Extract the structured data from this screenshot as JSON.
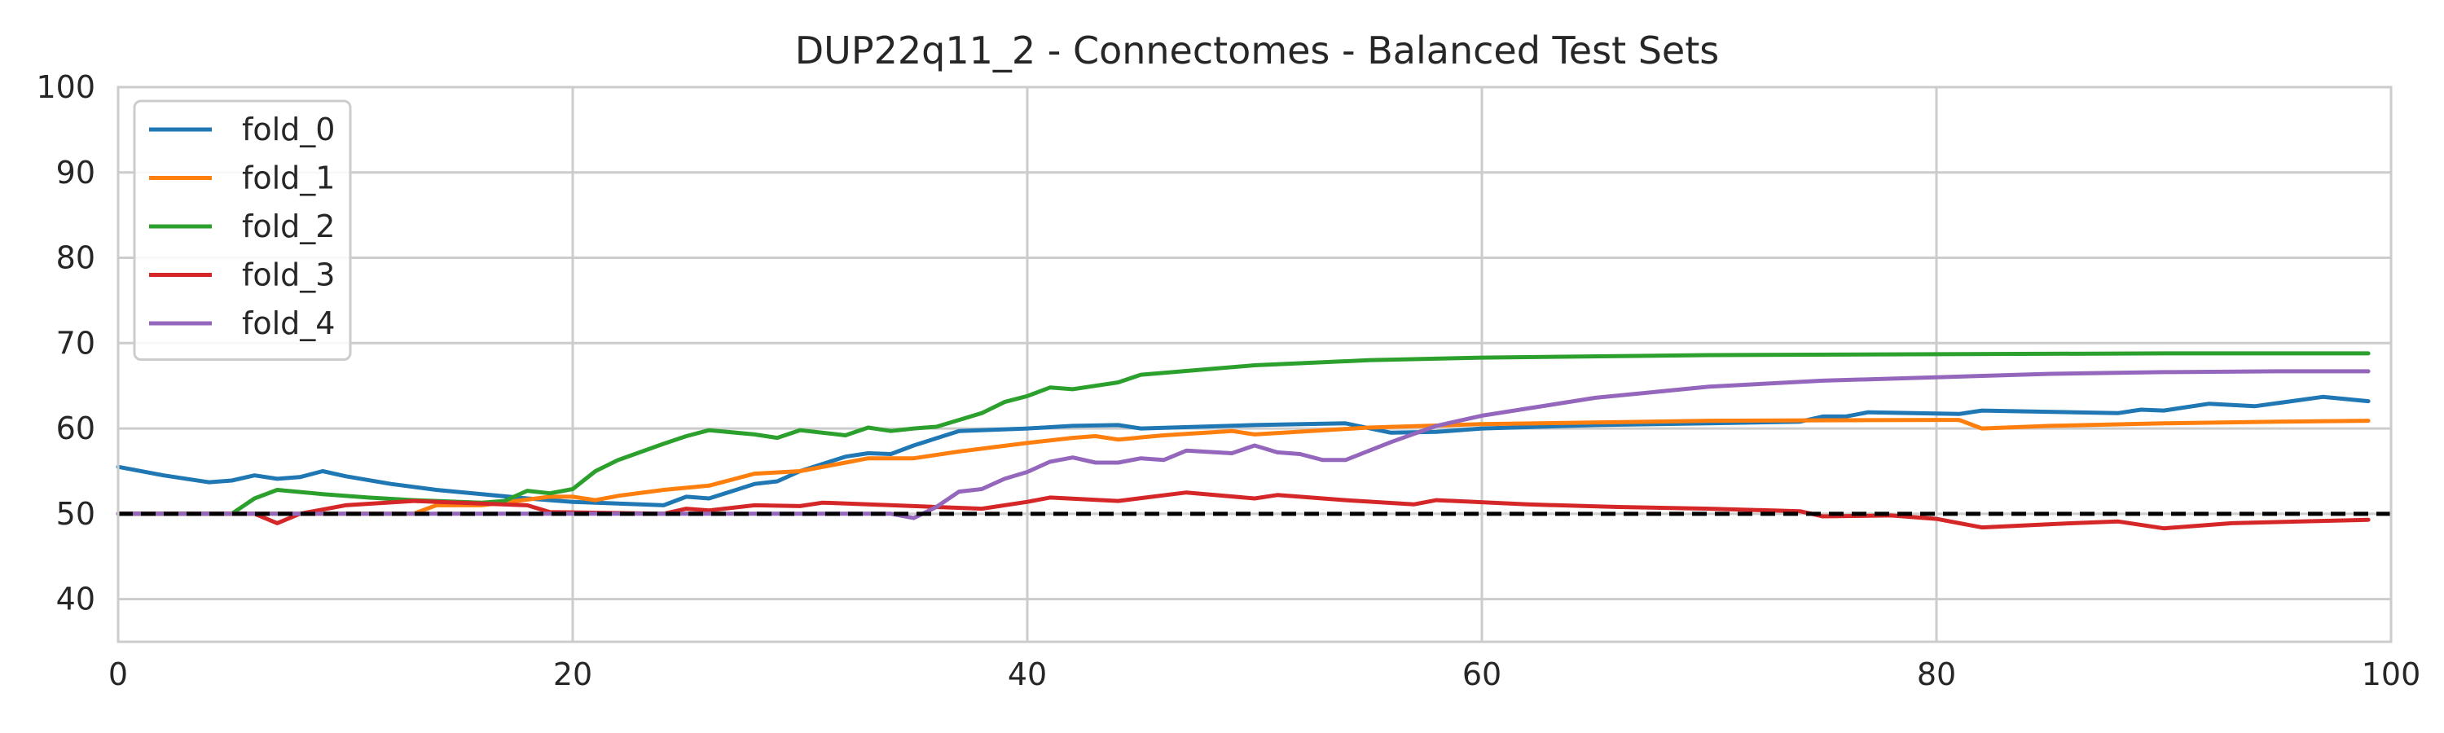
{
  "chart_data": {
    "type": "line",
    "title": "DUP22q11_2 - Connectomes - Balanced Test Sets",
    "xlabel": "",
    "ylabel": "",
    "xlim": [
      0,
      100
    ],
    "ylim": [
      35,
      100
    ],
    "xticks": [
      "0",
      "20",
      "40",
      "60",
      "80",
      "100"
    ],
    "yticks": [
      "40",
      "50",
      "60",
      "70",
      "80",
      "90",
      "100"
    ],
    "grid": true,
    "legend_position": "top-left",
    "reference_line": {
      "y": 50,
      "style": "dashed",
      "color": "#000000"
    },
    "series": [
      {
        "name": "fold_0",
        "color": "#1f77b4",
        "points": [
          [
            0,
            55.5
          ],
          [
            2,
            54.5
          ],
          [
            4,
            53.7
          ],
          [
            5,
            53.9
          ],
          [
            6,
            54.5
          ],
          [
            7,
            54.1
          ],
          [
            8,
            54.3
          ],
          [
            9,
            55.0
          ],
          [
            10,
            54.4
          ],
          [
            12,
            53.5
          ],
          [
            14,
            52.8
          ],
          [
            16,
            52.3
          ],
          [
            18,
            51.8
          ],
          [
            20,
            51.4
          ],
          [
            22,
            51.2
          ],
          [
            24,
            51.0
          ],
          [
            25,
            52.0
          ],
          [
            26,
            51.8
          ],
          [
            28,
            53.5
          ],
          [
            29,
            53.8
          ],
          [
            30,
            55.0
          ],
          [
            32,
            56.7
          ],
          [
            33,
            57.1
          ],
          [
            34,
            57.0
          ],
          [
            35,
            58.0
          ],
          [
            37,
            59.7
          ],
          [
            40,
            60.0
          ],
          [
            42,
            60.3
          ],
          [
            44,
            60.4
          ],
          [
            45,
            60.0
          ],
          [
            50,
            60.4
          ],
          [
            54,
            60.6
          ],
          [
            56,
            59.5
          ],
          [
            58,
            59.6
          ],
          [
            60,
            60.0
          ],
          [
            65,
            60.4
          ],
          [
            70,
            60.6
          ],
          [
            74,
            60.8
          ],
          [
            75,
            61.4
          ],
          [
            76,
            61.4
          ],
          [
            77,
            61.9
          ],
          [
            81,
            61.7
          ],
          [
            82,
            62.1
          ],
          [
            88,
            61.8
          ],
          [
            89,
            62.2
          ],
          [
            90,
            62.1
          ],
          [
            92,
            62.9
          ],
          [
            94,
            62.6
          ],
          [
            97,
            63.7
          ],
          [
            99,
            63.2
          ]
        ]
      },
      {
        "name": "fold_1",
        "color": "#ff7f0e",
        "points": [
          [
            0,
            50.0
          ],
          [
            13,
            50.0
          ],
          [
            14,
            51.0
          ],
          [
            16,
            51.0
          ],
          [
            19,
            52.0
          ],
          [
            20,
            52.0
          ],
          [
            21,
            51.6
          ],
          [
            22,
            52.1
          ],
          [
            24,
            52.8
          ],
          [
            26,
            53.3
          ],
          [
            28,
            54.7
          ],
          [
            30,
            55.0
          ],
          [
            32,
            56.0
          ],
          [
            33,
            56.5
          ],
          [
            35,
            56.5
          ],
          [
            37,
            57.3
          ],
          [
            40,
            58.3
          ],
          [
            42,
            58.9
          ],
          [
            43,
            59.1
          ],
          [
            44,
            58.7
          ],
          [
            46,
            59.2
          ],
          [
            49,
            59.7
          ],
          [
            50,
            59.3
          ],
          [
            55,
            60.1
          ],
          [
            60,
            60.5
          ],
          [
            70,
            60.9
          ],
          [
            80,
            61.0
          ],
          [
            81,
            61.0
          ],
          [
            82,
            60.0
          ],
          [
            85,
            60.3
          ],
          [
            90,
            60.6
          ],
          [
            95,
            60.8
          ],
          [
            99,
            60.9
          ]
        ]
      },
      {
        "name": "fold_2",
        "color": "#2ca02c",
        "points": [
          [
            0,
            50.0
          ],
          [
            5,
            50.0
          ],
          [
            6,
            51.8
          ],
          [
            7,
            52.8
          ],
          [
            9,
            52.3
          ],
          [
            11,
            51.9
          ],
          [
            13,
            51.6
          ],
          [
            16,
            51.3
          ],
          [
            17,
            51.5
          ],
          [
            18,
            52.7
          ],
          [
            19,
            52.4
          ],
          [
            20,
            52.9
          ],
          [
            21,
            55.0
          ],
          [
            22,
            56.3
          ],
          [
            24,
            58.2
          ],
          [
            25,
            59.1
          ],
          [
            26,
            59.8
          ],
          [
            28,
            59.3
          ],
          [
            29,
            58.9
          ],
          [
            30,
            59.8
          ],
          [
            32,
            59.2
          ],
          [
            33,
            60.1
          ],
          [
            34,
            59.7
          ],
          [
            35,
            60.0
          ],
          [
            36,
            60.2
          ],
          [
            37,
            61.0
          ],
          [
            38,
            61.8
          ],
          [
            39,
            63.1
          ],
          [
            40,
            63.8
          ],
          [
            41,
            64.8
          ],
          [
            42,
            64.6
          ],
          [
            43,
            65.0
          ],
          [
            44,
            65.4
          ],
          [
            45,
            66.3
          ],
          [
            50,
            67.4
          ],
          [
            55,
            68.0
          ],
          [
            60,
            68.3
          ],
          [
            70,
            68.6
          ],
          [
            80,
            68.7
          ],
          [
            90,
            68.8
          ],
          [
            99,
            68.8
          ]
        ]
      },
      {
        "name": "fold_3",
        "color": "#d62728",
        "points": [
          [
            0,
            50.0
          ],
          [
            6,
            50.0
          ],
          [
            7,
            48.9
          ],
          [
            8,
            50.0
          ],
          [
            10,
            51.0
          ],
          [
            13,
            51.5
          ],
          [
            18,
            51.0
          ],
          [
            19,
            50.2
          ],
          [
            24,
            50.0
          ],
          [
            25,
            50.6
          ],
          [
            26,
            50.4
          ],
          [
            28,
            51.0
          ],
          [
            30,
            50.9
          ],
          [
            31,
            51.3
          ],
          [
            35,
            50.9
          ],
          [
            38,
            50.6
          ],
          [
            40,
            51.4
          ],
          [
            41,
            51.9
          ],
          [
            44,
            51.5
          ],
          [
            47,
            52.5
          ],
          [
            50,
            51.8
          ],
          [
            51,
            52.2
          ],
          [
            54,
            51.6
          ],
          [
            57,
            51.1
          ],
          [
            58,
            51.6
          ],
          [
            62,
            51.1
          ],
          [
            66,
            50.8
          ],
          [
            70,
            50.6
          ],
          [
            74,
            50.3
          ],
          [
            75,
            49.7
          ],
          [
            78,
            49.8
          ],
          [
            80,
            49.4
          ],
          [
            82,
            48.4
          ],
          [
            86,
            48.9
          ],
          [
            88,
            49.1
          ],
          [
            90,
            48.3
          ],
          [
            93,
            48.9
          ],
          [
            99,
            49.3
          ]
        ]
      },
      {
        "name": "fold_4",
        "color": "#9467bd",
        "points": [
          [
            0,
            50.0
          ],
          [
            34,
            50.0
          ],
          [
            35,
            49.5
          ],
          [
            36,
            50.8
          ],
          [
            37,
            52.6
          ],
          [
            38,
            52.9
          ],
          [
            39,
            54.1
          ],
          [
            40,
            54.9
          ],
          [
            41,
            56.1
          ],
          [
            42,
            56.6
          ],
          [
            43,
            56.0
          ],
          [
            44,
            56.0
          ],
          [
            45,
            56.5
          ],
          [
            46,
            56.3
          ],
          [
            47,
            57.4
          ],
          [
            49,
            57.1
          ],
          [
            50,
            58.0
          ],
          [
            51,
            57.2
          ],
          [
            52,
            57.0
          ],
          [
            53,
            56.3
          ],
          [
            54,
            56.3
          ],
          [
            56,
            58.4
          ],
          [
            58,
            60.3
          ],
          [
            60,
            61.5
          ],
          [
            65,
            63.6
          ],
          [
            70,
            64.9
          ],
          [
            75,
            65.6
          ],
          [
            80,
            66.0
          ],
          [
            85,
            66.4
          ],
          [
            90,
            66.6
          ],
          [
            95,
            66.7
          ],
          [
            99,
            66.7
          ]
        ]
      }
    ]
  }
}
